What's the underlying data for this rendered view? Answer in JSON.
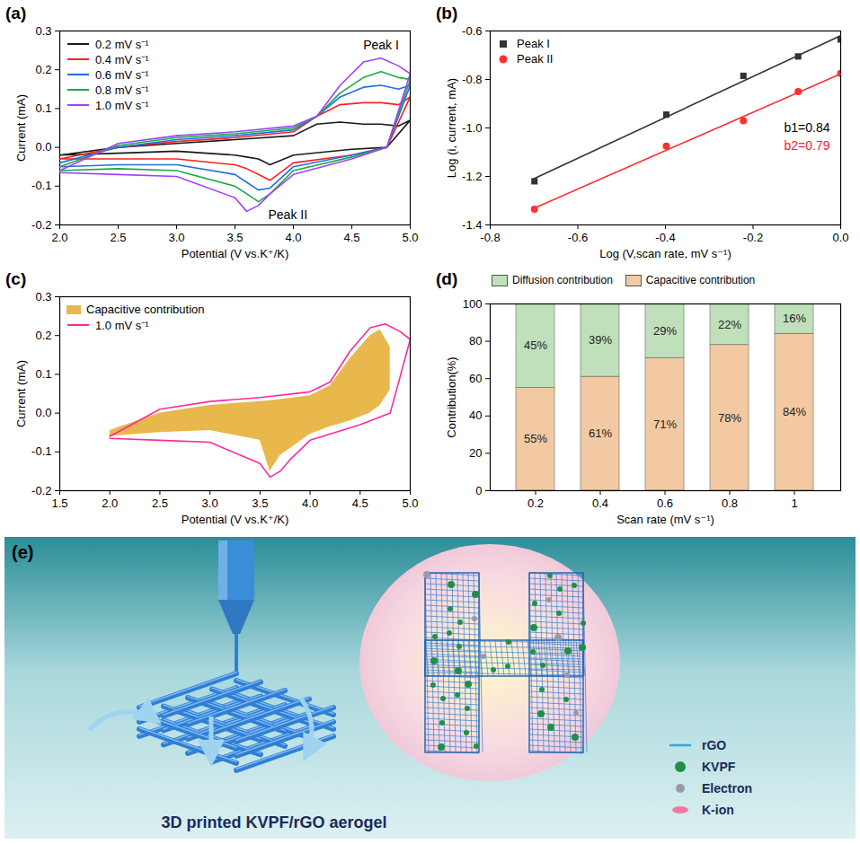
{
  "chart_data": [
    {
      "panel_label": "(a)",
      "type": "line",
      "x_label": "Potential (V vs.K⁺/K)",
      "y_label": "Current (mA)",
      "x": [
        2.0,
        2.5,
        3.0,
        3.5,
        4.0,
        4.2,
        4.4,
        4.6,
        4.75,
        4.9,
        5.0,
        4.8,
        4.5,
        4.0,
        3.8,
        3.7,
        3.6,
        3.5,
        3.0,
        2.5,
        2.0
      ],
      "series": [
        {
          "name": "0.2 mV s⁻¹",
          "color": "#1a1a1a",
          "values": [
            -0.02,
            0.0,
            0.01,
            0.02,
            0.03,
            0.06,
            0.065,
            0.06,
            0.06,
            0.055,
            0.07,
            0.0,
            -0.005,
            -0.02,
            -0.045,
            -0.03,
            -0.025,
            -0.02,
            -0.01,
            -0.015,
            -0.02
          ]
        },
        {
          "name": "0.4 mV s⁻¹",
          "color": "#ff2020",
          "values": [
            -0.03,
            0.0,
            0.015,
            0.025,
            0.04,
            0.08,
            0.11,
            0.115,
            0.115,
            0.11,
            0.13,
            0.0,
            -0.02,
            -0.04,
            -0.085,
            -0.07,
            -0.055,
            -0.045,
            -0.03,
            -0.03,
            -0.03
          ]
        },
        {
          "name": "0.6 mV s⁻¹",
          "color": "#1f6fe0",
          "values": [
            -0.04,
            0.0,
            0.02,
            0.03,
            0.045,
            0.08,
            0.13,
            0.155,
            0.16,
            0.15,
            0.16,
            0.0,
            -0.02,
            -0.05,
            -0.105,
            -0.11,
            -0.09,
            -0.07,
            -0.045,
            -0.045,
            -0.05
          ]
        },
        {
          "name": "0.8 mV s⁻¹",
          "color": "#1aaa44",
          "values": [
            -0.05,
            0.005,
            0.025,
            0.035,
            0.05,
            0.08,
            0.14,
            0.18,
            0.195,
            0.18,
            0.175,
            0.0,
            -0.025,
            -0.06,
            -0.12,
            -0.14,
            -0.12,
            -0.1,
            -0.06,
            -0.055,
            -0.06
          ]
        },
        {
          "name": "1.0 mV s⁻¹",
          "color": "#a040ff",
          "values": [
            -0.06,
            0.01,
            0.03,
            0.04,
            0.055,
            0.08,
            0.16,
            0.22,
            0.23,
            0.21,
            0.19,
            0.0,
            -0.03,
            -0.07,
            -0.12,
            -0.15,
            -0.165,
            -0.13,
            -0.075,
            -0.07,
            -0.065
          ]
        }
      ],
      "annotations": [
        "Peak I",
        "Peak II"
      ],
      "xlim": [
        2.0,
        5.0
      ],
      "xticks": [
        {
          "value": 2,
          "label": "2.0"
        },
        2.5,
        {
          "value": 3,
          "label": "3.0"
        },
        3.5,
        {
          "value": 4,
          "label": "4.0"
        },
        4.5,
        {
          "value": 5,
          "label": "5.0"
        }
      ],
      "ylim": [
        -0.2,
        0.3
      ],
      "yticks": [
        -0.2,
        -0.1,
        {
          "value": 0,
          "label": "0.0"
        },
        0.1,
        0.2,
        0.3
      ],
      "legend": "top-left"
    },
    {
      "panel_label": "(b)",
      "type": "scatter",
      "x_label": "Log (V,scan rate, mV s⁻¹)",
      "y_label": "Log (i, current, mA)",
      "x": [
        -0.699,
        -0.398,
        -0.222,
        -0.097,
        0.0
      ],
      "series": [
        {
          "name": "Peak I",
          "color": "#333333",
          "marker": "square",
          "values": [
            -1.22,
            -0.945,
            -0.785,
            -0.705,
            -0.635
          ]
        },
        {
          "name": "Peak II",
          "color": "#ff3030",
          "marker": "circle",
          "values": [
            -1.335,
            -1.075,
            -0.97,
            -0.85,
            -0.775
          ]
        }
      ],
      "annotations": [
        {
          "text": "b1=0.84",
          "color": "#000000"
        },
        {
          "text": "b2=0.79",
          "color": "#ff2020"
        }
      ],
      "xlim": [
        -0.8,
        0.0
      ],
      "xticks": [
        -0.8,
        -0.6,
        -0.4,
        -0.2,
        {
          "value": 0,
          "label": "0.0"
        }
      ],
      "ylim": [
        -1.4,
        -0.6
      ],
      "yticks": [
        -1.4,
        -1.2,
        {
          "value": -1,
          "label": "-1.0"
        },
        -0.8,
        -0.6
      ],
      "legend": "top-left"
    },
    {
      "panel_label": "(c)",
      "type": "line",
      "x_label": "Potential (V vs.K⁺/K)",
      "y_label": "Current (mA)",
      "x": [
        2.0,
        2.5,
        3.0,
        3.5,
        4.0,
        4.2,
        4.4,
        4.6,
        4.75,
        4.9,
        5.0,
        4.8,
        4.5,
        4.0,
        3.8,
        3.7,
        3.6,
        3.5,
        3.0,
        2.5,
        2.0
      ],
      "series": [
        {
          "name": "1.0 mV s⁻¹",
          "color": "#ff2a9a",
          "values": [
            -0.06,
            0.01,
            0.03,
            0.04,
            0.055,
            0.08,
            0.16,
            0.22,
            0.23,
            0.21,
            0.19,
            0.0,
            -0.03,
            -0.07,
            -0.12,
            -0.15,
            -0.165,
            -0.13,
            -0.075,
            -0.07,
            -0.065
          ]
        }
      ],
      "area": {
        "name": "Capacitive contribution",
        "color": "#e8b84c",
        "x": [
          2.0,
          2.5,
          3.0,
          3.5,
          3.6,
          3.7,
          4.0,
          4.2,
          4.4,
          4.6,
          4.7,
          4.8
        ],
        "upper": [
          -0.045,
          0.0,
          0.02,
          0.03,
          0.032,
          0.035,
          0.045,
          0.07,
          0.14,
          0.2,
          0.215,
          0.17
        ],
        "lower": [
          -0.06,
          -0.05,
          -0.045,
          -0.07,
          -0.15,
          -0.11,
          -0.055,
          -0.035,
          -0.02,
          0.0,
          0.02,
          0.06
        ]
      },
      "xlim": [
        1.5,
        5.0
      ],
      "xticks": [
        1.5,
        {
          "value": 2,
          "label": "2.0"
        },
        2.5,
        {
          "value": 3,
          "label": "3.0"
        },
        3.5,
        {
          "value": 4,
          "label": "4.0"
        },
        4.5,
        {
          "value": 5,
          "label": "5.0"
        }
      ],
      "ylim": [
        -0.2,
        0.3
      ],
      "yticks": [
        -0.2,
        -0.1,
        {
          "value": 0,
          "label": "0.0"
        },
        0.1,
        0.2,
        0.3
      ],
      "legend": "top-left"
    },
    {
      "panel_label": "(d)",
      "type": "bar",
      "stacked": true,
      "data_labels": true,
      "x_label": "Scan rate (mV s⁻¹)",
      "y_label": "Contribution(%)",
      "categories": [
        "0.2",
        "0.4",
        "0.6",
        "0.8",
        "1"
      ],
      "series": [
        {
          "name": "Diffusion contribution",
          "color": "#bfe0bb",
          "values": [
            45,
            39,
            29,
            22,
            16
          ],
          "value_labels": [
            "45%",
            "39%",
            "29%",
            "22%",
            "16%"
          ]
        },
        {
          "name": "Capacitive contribution",
          "color": "#f2c9a2",
          "values": [
            55,
            61,
            71,
            78,
            84
          ],
          "value_labels": [
            "55%",
            "61%",
            "71%",
            "78%",
            "84%"
          ]
        }
      ],
      "ylim": [
        0,
        100
      ],
      "yticks": [
        0,
        20,
        40,
        60,
        80,
        100
      ],
      "legend": "top"
    }
  ],
  "illustration": {
    "panel_label": "(e)",
    "caption": "3D printed KVPF/rGO aerogel",
    "key_items": [
      "rGO",
      "KVPF",
      "Electron",
      "K-ion"
    ]
  }
}
